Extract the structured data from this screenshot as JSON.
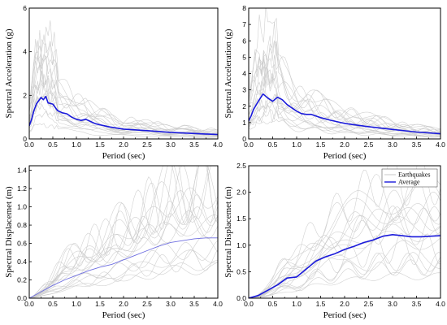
{
  "chart_data": [
    {
      "id": "acc-left",
      "type": "line",
      "xlabel": "Period (sec)",
      "ylabel": "Spectral Acceleration (g)",
      "xlim": [
        0,
        4.0
      ],
      "ylim": [
        0,
        6
      ],
      "xticks": [
        "0.0",
        "0.5",
        "1.0",
        "1.5",
        "2.0",
        "2.5",
        "3.0",
        "3.5",
        "4.0"
      ],
      "yticks": [
        "0",
        "2",
        "4",
        "6"
      ],
      "colors": {
        "earthquakes": "#c8c8c8",
        "average": "#1a1adb"
      },
      "series": [
        {
          "name": "Average",
          "x": [
            0.0,
            0.05,
            0.1,
            0.15,
            0.2,
            0.25,
            0.3,
            0.35,
            0.4,
            0.5,
            0.6,
            0.7,
            0.8,
            0.9,
            1.0,
            1.1,
            1.2,
            1.3,
            1.4,
            1.5,
            1.7,
            2.0,
            2.5,
            3.0,
            3.5,
            4.0
          ],
          "y": [
            0.6,
            0.9,
            1.3,
            1.6,
            1.75,
            1.9,
            1.8,
            1.95,
            1.65,
            1.6,
            1.3,
            1.2,
            1.15,
            1.0,
            0.9,
            0.85,
            0.9,
            0.8,
            0.7,
            0.65,
            0.55,
            0.45,
            0.38,
            0.3,
            0.25,
            0.2
          ]
        }
      ],
      "earthquake_count": 18
    },
    {
      "id": "acc-right",
      "type": "line",
      "xlabel": "Period (sec)",
      "ylabel": "Spectral Acceleration (g)",
      "xlim": [
        0,
        4.0
      ],
      "ylim": [
        0,
        8
      ],
      "xticks": [
        "0.0",
        "0.5",
        "1.0",
        "1.5",
        "2.0",
        "2.5",
        "3.0",
        "3.5",
        "4.0"
      ],
      "yticks": [
        "0",
        "1",
        "2",
        "3",
        "4",
        "5",
        "6",
        "7",
        "8"
      ],
      "colors": {
        "earthquakes": "#c8c8c8",
        "average": "#1a1adb"
      },
      "series": [
        {
          "name": "Average",
          "x": [
            0.0,
            0.05,
            0.1,
            0.2,
            0.3,
            0.4,
            0.5,
            0.6,
            0.7,
            0.8,
            0.9,
            1.0,
            1.1,
            1.2,
            1.3,
            1.4,
            1.5,
            1.7,
            2.0,
            2.5,
            3.0,
            3.5,
            4.0
          ],
          "y": [
            1.1,
            1.4,
            1.8,
            2.3,
            2.75,
            2.5,
            2.3,
            2.55,
            2.4,
            2.1,
            1.9,
            1.7,
            1.55,
            1.5,
            1.5,
            1.4,
            1.3,
            1.15,
            0.95,
            0.75,
            0.58,
            0.42,
            0.32
          ]
        }
      ],
      "earthquake_count": 18
    },
    {
      "id": "disp-left",
      "type": "line",
      "xlabel": "Period (sec)",
      "ylabel": "Spectral Displacemet (m)",
      "xlim": [
        0,
        4.0
      ],
      "ylim": [
        0,
        1.45
      ],
      "xticks": [
        "0.0",
        "0.5",
        "1.0",
        "1.5",
        "2.0",
        "2.5",
        "3.0",
        "3.5",
        "4.0"
      ],
      "yticks": [
        "0.0",
        "0.2",
        "0.4",
        "0.6",
        "0.8",
        "1.0",
        "1.2",
        "1.4"
      ],
      "colors": {
        "earthquakes": "#c8c8c8",
        "average": "#6f6fe0"
      },
      "series": [
        {
          "name": "Average",
          "x": [
            0.0,
            0.25,
            0.5,
            0.75,
            1.0,
            1.25,
            1.5,
            1.75,
            2.0,
            2.25,
            2.5,
            2.75,
            3.0,
            3.25,
            3.5,
            3.75,
            4.0
          ],
          "y": [
            0.0,
            0.07,
            0.14,
            0.2,
            0.25,
            0.3,
            0.34,
            0.37,
            0.42,
            0.47,
            0.52,
            0.57,
            0.61,
            0.63,
            0.65,
            0.66,
            0.66
          ]
        }
      ],
      "earthquake_count": 18
    },
    {
      "id": "disp-right",
      "type": "line",
      "xlabel": "Period (sec)",
      "ylabel": "Spectral Displacemet (m)",
      "xlim": [
        0,
        4.0
      ],
      "ylim": [
        0,
        2.5
      ],
      "xticks": [
        "0.0",
        "0.5",
        "1.0",
        "1.5",
        "2.0",
        "2.5",
        "3.0",
        "3.5",
        "4.0"
      ],
      "yticks": [
        "0.0",
        "0.5",
        "1.0",
        "1.5",
        "2.0",
        "2.5"
      ],
      "legend": {
        "placement": "top-right",
        "entries": [
          "Earthquakes",
          "Average"
        ]
      },
      "colors": {
        "earthquakes": "#c8c8c8",
        "average": "#1a1adb"
      },
      "series": [
        {
          "name": "Average",
          "x": [
            0.0,
            0.2,
            0.4,
            0.6,
            0.8,
            1.0,
            1.2,
            1.4,
            1.6,
            1.8,
            2.0,
            2.2,
            2.4,
            2.6,
            2.8,
            3.0,
            3.2,
            3.4,
            3.6,
            3.8,
            4.0
          ],
          "y": [
            0.0,
            0.05,
            0.15,
            0.25,
            0.38,
            0.4,
            0.55,
            0.7,
            0.78,
            0.84,
            0.92,
            0.98,
            1.05,
            1.1,
            1.17,
            1.2,
            1.18,
            1.16,
            1.16,
            1.17,
            1.18
          ]
        }
      ],
      "earthquake_count": 18
    }
  ]
}
